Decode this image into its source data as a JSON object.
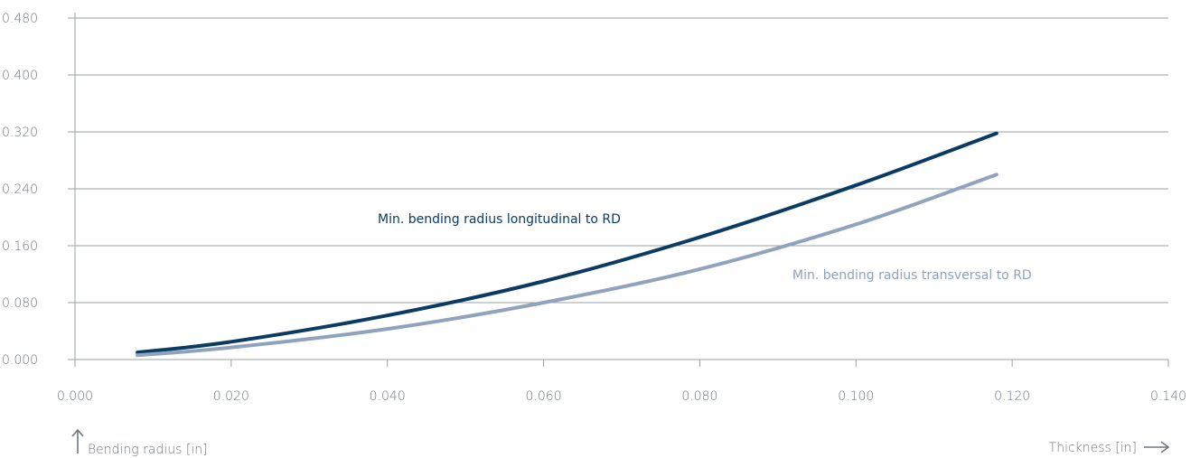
{
  "chart_data": {
    "type": "line",
    "title": "",
    "xlabel": "Thickness [in]",
    "ylabel": "Bending radius [in]",
    "xlim": [
      0.0,
      0.14
    ],
    "ylim": [
      0.0,
      0.48
    ],
    "x_ticks": [
      "0.000",
      "0.020",
      "0.040",
      "0.060",
      "0.080",
      "0.100",
      "0.120",
      "0.140"
    ],
    "y_ticks": [
      "0.000",
      "0.080",
      "0.160",
      "0.240",
      "0.320",
      "0.400",
      "0.480"
    ],
    "grid": "horizontal",
    "series": [
      {
        "name": "Min. bending radius longitudinal to RD",
        "color": "#0b3b63",
        "x": [
          0.008,
          0.02,
          0.04,
          0.06,
          0.08,
          0.1,
          0.118
        ],
        "y": [
          0.01,
          0.025,
          0.062,
          0.11,
          0.172,
          0.245,
          0.318
        ]
      },
      {
        "name": "Min. bending radius transversal to RD",
        "color": "#8fa3bd",
        "x": [
          0.008,
          0.02,
          0.04,
          0.06,
          0.08,
          0.1,
          0.118
        ],
        "y": [
          0.006,
          0.017,
          0.043,
          0.08,
          0.127,
          0.19,
          0.26
        ]
      }
    ]
  }
}
